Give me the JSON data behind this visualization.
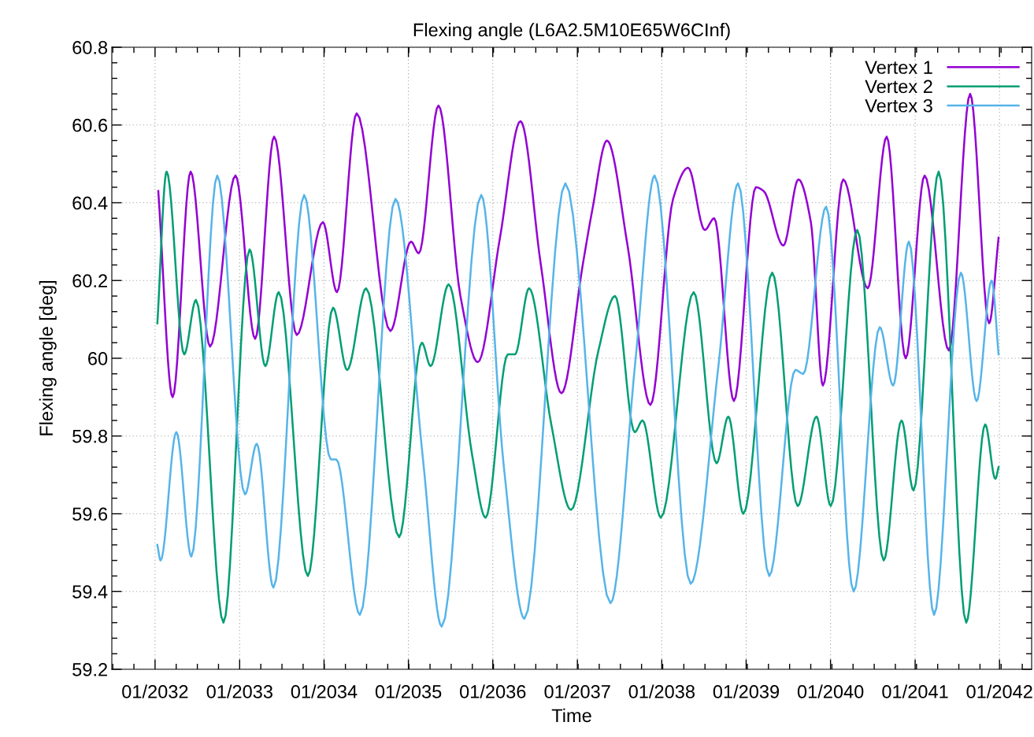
{
  "chart_data": {
    "type": "line",
    "title": "Flexing angle (L6A2.5M10E65W6CInf)",
    "xlabel": "Time",
    "ylabel": "Flexing angle [deg]",
    "xlim": [
      "2031-06-28",
      "2042-05-20"
    ],
    "xticks": [
      {
        "value": "2032-01-01",
        "label": "01/2032"
      },
      {
        "value": "2033-01-01",
        "label": "01/2033"
      },
      {
        "value": "2034-01-01",
        "label": "01/2034"
      },
      {
        "value": "2035-01-01",
        "label": "01/2035"
      },
      {
        "value": "2036-01-01",
        "label": "01/2036"
      },
      {
        "value": "2037-01-01",
        "label": "01/2037"
      },
      {
        "value": "2038-01-01",
        "label": "01/2038"
      },
      {
        "value": "2039-01-01",
        "label": "01/2039"
      },
      {
        "value": "2040-01-01",
        "label": "01/2040"
      },
      {
        "value": "2041-01-01",
        "label": "01/2041"
      },
      {
        "value": "2042-01-01",
        "label": "01/2042"
      }
    ],
    "ylim": [
      59.2,
      60.8
    ],
    "yticks": [
      59.2,
      59.4,
      59.6,
      59.8,
      60,
      60.2,
      60.4,
      60.6,
      60.8
    ],
    "grid": true,
    "legend": "top right",
    "marker": "none",
    "line_style": "solid",
    "series": [
      {
        "name": "Vertex 1",
        "color": "#9400d3",
        "x": [
          "2032-01-15",
          "2032-03-17",
          "2032-06-03",
          "2032-08-26",
          "2032-12-14",
          "2033-03-09",
          "2033-05-30",
          "2033-09-05",
          "2033-12-27",
          "2034-02-26",
          "2034-05-22",
          "2034-10-15",
          "2035-01-12",
          "2035-02-15",
          "2035-05-11",
          "2035-08-14",
          "2035-10-28",
          "2036-02-01",
          "2036-04-30",
          "2036-07-27",
          "2036-10-24",
          "2037-01-24",
          "2037-03-06",
          "2037-05-09",
          "2037-08-06",
          "2037-11-13",
          "2038-02-19",
          "2038-04-25",
          "2038-07-06",
          "2038-08-16",
          "2038-11-09",
          "2039-02-12",
          "2039-03-18",
          "2039-06-11",
          "2039-08-15",
          "2039-10-08",
          "2039-11-29",
          "2040-02-25",
          "2040-06-10",
          "2040-08-31",
          "2040-11-21",
          "2041-02-11",
          "2041-05-27",
          "2041-08-27",
          "2041-11-17",
          "2041-12-28"
        ],
        "values": [
          60.43,
          59.9,
          60.48,
          60.03,
          60.47,
          60.05,
          60.57,
          60.06,
          60.35,
          60.17,
          60.63,
          60.07,
          60.3,
          60.27,
          60.65,
          60.16,
          59.99,
          60.31,
          60.61,
          60.24,
          59.91,
          60.24,
          60.38,
          60.56,
          60.29,
          59.88,
          60.41,
          60.49,
          60.33,
          60.36,
          59.89,
          60.44,
          60.43,
          60.29,
          60.46,
          60.35,
          59.93,
          60.46,
          60.18,
          60.57,
          60.0,
          60.47,
          60.02,
          60.68,
          60.09,
          60.31
        ]
      },
      {
        "name": "Vertex 2",
        "color": "#009e73",
        "x": [
          "2032-01-11",
          "2032-02-20",
          "2032-05-06",
          "2032-06-26",
          "2032-10-23",
          "2033-02-13",
          "2033-04-22",
          "2033-06-19",
          "2033-10-23",
          "2034-02-09",
          "2034-04-11",
          "2034-07-02",
          "2034-11-22",
          "2035-02-28",
          "2035-04-07",
          "2035-06-24",
          "2035-10-04",
          "2035-12-01",
          "2036-03-06",
          "2036-04-06",
          "2036-06-06",
          "2036-09-10",
          "2036-12-04",
          "2037-04-02",
          "2037-06-13",
          "2037-09-06",
          "2037-10-10",
          "2037-12-28",
          "2038-05-19",
          "2038-08-26",
          "2038-10-16",
          "2038-12-20",
          "2039-04-24",
          "2039-08-12",
          "2039-11-01",
          "2040-01-02",
          "2040-04-26",
          "2040-08-18",
          "2040-11-03",
          "2040-12-25",
          "2041-04-13",
          "2041-08-10",
          "2041-10-31",
          "2041-12-14",
          "2041-12-28"
        ],
        "values": [
          60.09,
          60.48,
          60.01,
          60.15,
          59.32,
          60.28,
          59.98,
          60.17,
          59.44,
          60.13,
          59.97,
          60.18,
          59.54,
          60.04,
          59.98,
          60.19,
          59.75,
          59.59,
          60.01,
          60.01,
          60.18,
          59.83,
          59.61,
          60.02,
          60.16,
          59.81,
          59.84,
          59.59,
          60.17,
          59.73,
          59.85,
          59.6,
          60.22,
          59.62,
          59.85,
          59.62,
          60.33,
          59.48,
          59.84,
          59.66,
          60.48,
          59.32,
          59.83,
          59.69,
          59.72
        ]
      },
      {
        "name": "Vertex 3",
        "color": "#56b4e9",
        "x": [
          "2032-01-11",
          "2032-01-25",
          "2032-04-02",
          "2032-06-06",
          "2032-09-26",
          "2033-01-24",
          "2033-03-16",
          "2033-05-27",
          "2033-10-07",
          "2034-01-30",
          "2034-02-23",
          "2034-06-05",
          "2034-11-06",
          "2035-03-05",
          "2035-05-25",
          "2035-11-12",
          "2036-02-18",
          "2036-05-17",
          "2036-11-10",
          "2037-05-24",
          "2037-09-10",
          "2037-12-01",
          "2038-05-06",
          "2038-09-03",
          "2038-11-27",
          "2039-04-11",
          "2039-08-02",
          "2039-09-05",
          "2039-12-13",
          "2040-04-10",
          "2040-08-01",
          "2040-09-28",
          "2040-12-05",
          "2041-03-24",
          "2041-07-18",
          "2041-09-24",
          "2041-11-28",
          "2041-12-28"
        ],
        "values": [
          59.52,
          59.48,
          59.81,
          59.49,
          60.47,
          59.65,
          59.78,
          59.41,
          60.42,
          59.74,
          59.74,
          59.34,
          60.41,
          59.74,
          59.31,
          60.42,
          59.72,
          59.33,
          60.45,
          59.37,
          60.0,
          60.47,
          59.42,
          59.98,
          60.45,
          59.44,
          59.97,
          59.96,
          60.39,
          59.4,
          60.08,
          59.93,
          60.3,
          59.34,
          60.22,
          59.89,
          60.2,
          60.01
        ]
      }
    ]
  }
}
